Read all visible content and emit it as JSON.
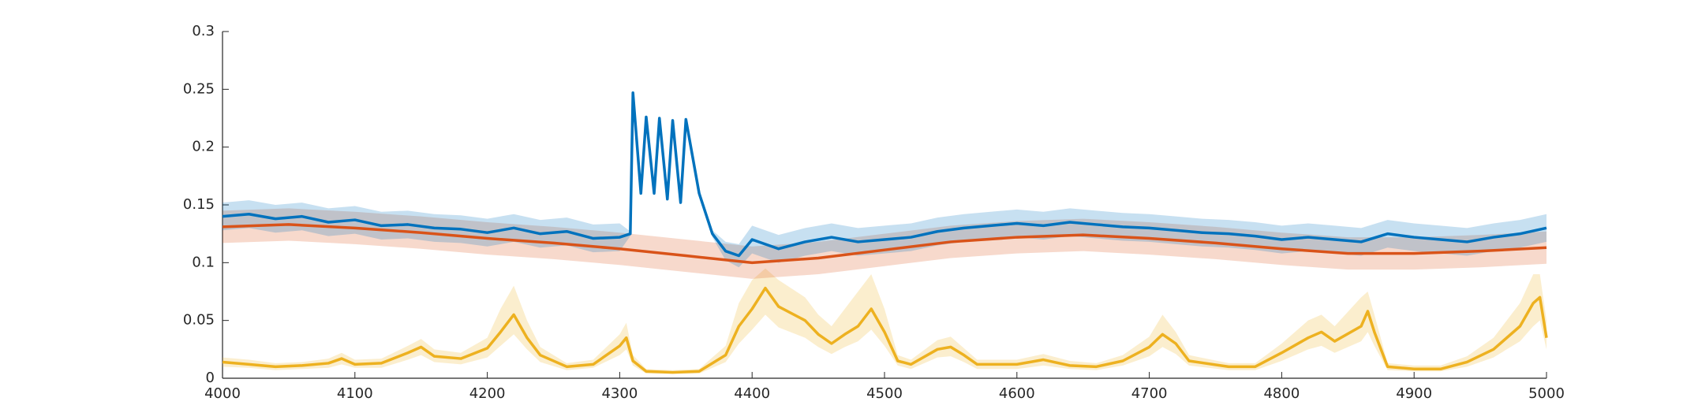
{
  "chart_data": {
    "type": "band-line",
    "xlim": [
      4000,
      5000
    ],
    "xticks": [
      4000,
      4100,
      4200,
      4300,
      4400,
      4500,
      4600,
      4700,
      4800,
      4900,
      5000
    ],
    "ylim": [
      0,
      0.3
    ],
    "yticks": [
      0,
      0.05,
      0.1,
      0.15,
      0.2,
      0.25,
      0.3
    ],
    "series": [
      {
        "color": "#EDB120",
        "x": [
          4000,
          4020,
          4040,
          4060,
          4080,
          4090,
          4100,
          4120,
          4140,
          4150,
          4160,
          4180,
          4200,
          4210,
          4220,
          4230,
          4240,
          4260,
          4280,
          4300,
          4305,
          4310,
          4320,
          4340,
          4360,
          4380,
          4390,
          4400,
          4410,
          4420,
          4440,
          4450,
          4460,
          4470,
          4480,
          4490,
          4500,
          4510,
          4520,
          4540,
          4550,
          4560,
          4570,
          4600,
          4620,
          4640,
          4660,
          4680,
          4700,
          4710,
          4720,
          4730,
          4760,
          4780,
          4800,
          4820,
          4830,
          4840,
          4860,
          4865,
          4870,
          4880,
          4900,
          4920,
          4940,
          4960,
          4980,
          4990,
          4995,
          5000
        ],
        "values": [
          0.014,
          0.012,
          0.01,
          0.011,
          0.013,
          0.017,
          0.012,
          0.013,
          0.022,
          0.027,
          0.019,
          0.017,
          0.026,
          0.04,
          0.055,
          0.035,
          0.02,
          0.01,
          0.012,
          0.028,
          0.035,
          0.015,
          0.006,
          0.005,
          0.006,
          0.02,
          0.045,
          0.06,
          0.078,
          0.062,
          0.05,
          0.038,
          0.03,
          0.038,
          0.045,
          0.06,
          0.04,
          0.015,
          0.012,
          0.025,
          0.027,
          0.02,
          0.012,
          0.012,
          0.016,
          0.011,
          0.01,
          0.015,
          0.027,
          0.038,
          0.03,
          0.015,
          0.01,
          0.01,
          0.022,
          0.035,
          0.04,
          0.032,
          0.045,
          0.058,
          0.04,
          0.01,
          0.008,
          0.008,
          0.014,
          0.025,
          0.045,
          0.065,
          0.07,
          0.035
        ],
        "upper": [
          0.018,
          0.016,
          0.013,
          0.014,
          0.017,
          0.022,
          0.016,
          0.017,
          0.028,
          0.034,
          0.025,
          0.022,
          0.035,
          0.06,
          0.08,
          0.05,
          0.027,
          0.013,
          0.016,
          0.038,
          0.048,
          0.02,
          0.008,
          0.007,
          0.008,
          0.028,
          0.065,
          0.085,
          0.095,
          0.085,
          0.07,
          0.055,
          0.045,
          0.06,
          0.075,
          0.09,
          0.06,
          0.02,
          0.016,
          0.033,
          0.036,
          0.026,
          0.016,
          0.016,
          0.021,
          0.015,
          0.013,
          0.02,
          0.036,
          0.055,
          0.04,
          0.02,
          0.013,
          0.013,
          0.03,
          0.05,
          0.055,
          0.045,
          0.07,
          0.075,
          0.055,
          0.013,
          0.011,
          0.011,
          0.019,
          0.035,
          0.065,
          0.09,
          0.09,
          0.05
        ],
        "lower": [
          0.01,
          0.009,
          0.007,
          0.008,
          0.009,
          0.012,
          0.009,
          0.009,
          0.016,
          0.02,
          0.014,
          0.012,
          0.018,
          0.028,
          0.038,
          0.025,
          0.014,
          0.007,
          0.009,
          0.02,
          0.025,
          0.011,
          0.004,
          0.004,
          0.004,
          0.014,
          0.03,
          0.042,
          0.055,
          0.044,
          0.035,
          0.027,
          0.021,
          0.027,
          0.032,
          0.042,
          0.028,
          0.011,
          0.008,
          0.018,
          0.019,
          0.014,
          0.008,
          0.008,
          0.011,
          0.008,
          0.007,
          0.011,
          0.019,
          0.027,
          0.021,
          0.011,
          0.007,
          0.007,
          0.015,
          0.025,
          0.028,
          0.022,
          0.032,
          0.04,
          0.028,
          0.007,
          0.006,
          0.006,
          0.01,
          0.018,
          0.032,
          0.045,
          0.05,
          0.025
        ]
      },
      {
        "color": "#D95319",
        "x": [
          4000,
          4050,
          4100,
          4150,
          4200,
          4250,
          4300,
          4350,
          4400,
          4450,
          4500,
          4550,
          4600,
          4650,
          4700,
          4750,
          4800,
          4850,
          4900,
          4950,
          5000
        ],
        "values": [
          0.131,
          0.133,
          0.13,
          0.126,
          0.121,
          0.117,
          0.112,
          0.106,
          0.1,
          0.104,
          0.111,
          0.118,
          0.122,
          0.124,
          0.121,
          0.117,
          0.112,
          0.108,
          0.108,
          0.11,
          0.113
        ],
        "upper": [
          0.145,
          0.147,
          0.144,
          0.14,
          0.135,
          0.131,
          0.126,
          0.12,
          0.114,
          0.118,
          0.125,
          0.132,
          0.136,
          0.138,
          0.135,
          0.131,
          0.126,
          0.122,
          0.122,
          0.124,
          0.127
        ],
        "lower": [
          0.117,
          0.119,
          0.116,
          0.112,
          0.107,
          0.103,
          0.098,
          0.092,
          0.086,
          0.09,
          0.097,
          0.104,
          0.108,
          0.11,
          0.107,
          0.103,
          0.098,
          0.094,
          0.094,
          0.096,
          0.099
        ]
      },
      {
        "color": "#0072BD",
        "x": [
          4000,
          4020,
          4040,
          4060,
          4080,
          4100,
          4120,
          4140,
          4160,
          4180,
          4200,
          4220,
          4240,
          4260,
          4280,
          4300,
          4308,
          4310,
          4316,
          4320,
          4326,
          4330,
          4336,
          4340,
          4346,
          4350,
          4360,
          4370,
          4380,
          4390,
          4400,
          4420,
          4440,
          4460,
          4480,
          4500,
          4520,
          4540,
          4560,
          4580,
          4600,
          4620,
          4640,
          4660,
          4680,
          4700,
          4720,
          4740,
          4760,
          4780,
          4800,
          4820,
          4840,
          4860,
          4880,
          4900,
          4920,
          4940,
          4960,
          4980,
          5000
        ],
        "values": [
          0.14,
          0.142,
          0.138,
          0.14,
          0.135,
          0.137,
          0.132,
          0.133,
          0.13,
          0.129,
          0.126,
          0.13,
          0.125,
          0.127,
          0.121,
          0.122,
          0.125,
          0.247,
          0.16,
          0.226,
          0.16,
          0.225,
          0.155,
          0.223,
          0.152,
          0.224,
          0.16,
          0.125,
          0.11,
          0.106,
          0.12,
          0.112,
          0.118,
          0.122,
          0.118,
          0.12,
          0.122,
          0.127,
          0.13,
          0.132,
          0.134,
          0.132,
          0.135,
          0.133,
          0.131,
          0.13,
          0.128,
          0.126,
          0.125,
          0.123,
          0.12,
          0.122,
          0.12,
          0.118,
          0.125,
          0.122,
          0.12,
          0.118,
          0.122,
          0.125,
          0.13
        ],
        "upper": [
          0.152,
          0.154,
          0.15,
          0.152,
          0.147,
          0.149,
          0.144,
          0.145,
          0.142,
          0.141,
          0.138,
          0.142,
          0.137,
          0.139,
          0.133,
          0.134,
          0.127,
          0.249,
          0.162,
          0.228,
          0.162,
          0.227,
          0.157,
          0.225,
          0.154,
          0.226,
          0.162,
          0.128,
          0.118,
          0.116,
          0.132,
          0.124,
          0.13,
          0.134,
          0.13,
          0.132,
          0.134,
          0.139,
          0.142,
          0.144,
          0.146,
          0.144,
          0.147,
          0.145,
          0.143,
          0.142,
          0.14,
          0.138,
          0.137,
          0.135,
          0.132,
          0.134,
          0.132,
          0.13,
          0.137,
          0.134,
          0.132,
          0.13,
          0.134,
          0.137,
          0.142
        ],
        "lower": [
          0.128,
          0.13,
          0.126,
          0.128,
          0.123,
          0.125,
          0.12,
          0.121,
          0.118,
          0.117,
          0.114,
          0.118,
          0.113,
          0.115,
          0.109,
          0.11,
          0.123,
          0.245,
          0.158,
          0.224,
          0.158,
          0.223,
          0.153,
          0.221,
          0.15,
          0.222,
          0.158,
          0.122,
          0.102,
          0.096,
          0.108,
          0.1,
          0.106,
          0.11,
          0.106,
          0.108,
          0.11,
          0.115,
          0.118,
          0.12,
          0.122,
          0.12,
          0.123,
          0.121,
          0.119,
          0.118,
          0.116,
          0.114,
          0.113,
          0.111,
          0.108,
          0.11,
          0.108,
          0.106,
          0.113,
          0.11,
          0.108,
          0.106,
          0.11,
          0.113,
          0.118
        ]
      }
    ]
  }
}
